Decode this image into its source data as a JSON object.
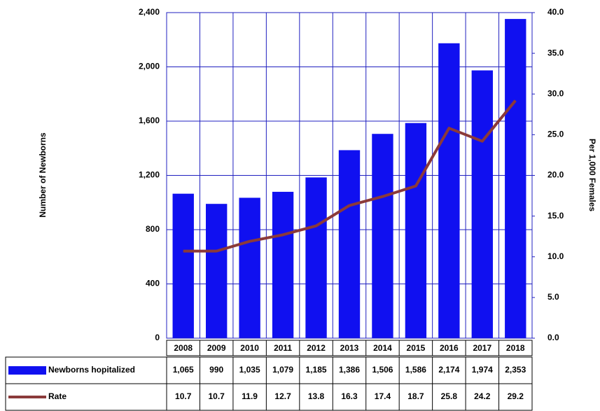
{
  "chart_data": {
    "type": "bar",
    "y_label": "Number of Newborns",
    "y2_label": "Per 1,000 Females",
    "categories": [
      "2008",
      "2009",
      "2010",
      "2011",
      "2012",
      "2013",
      "2014",
      "2015",
      "2016",
      "2017",
      "2018"
    ],
    "series": [
      {
        "name": "Newborns hopitalized",
        "type": "bar",
        "color": "#1010f0",
        "values": [
          1065,
          990,
          1035,
          1079,
          1185,
          1386,
          1506,
          1586,
          2174,
          1974,
          2353
        ],
        "value_labels": [
          "1,065",
          "990",
          "1,035",
          "1,079",
          "1,185",
          "1,386",
          "1,506",
          "1,586",
          "2,174",
          "1,974",
          "2,353"
        ]
      },
      {
        "name": "Rate",
        "type": "line",
        "axis": "y2",
        "color": "#8b3a3a",
        "values": [
          10.7,
          10.7,
          11.9,
          12.7,
          13.8,
          16.3,
          17.4,
          18.7,
          25.8,
          24.2,
          29.2
        ]
      }
    ],
    "ylim": [
      0,
      2400
    ],
    "yticks": [
      0,
      400,
      800,
      {
        "value": 1200,
        "label": "1,200"
      },
      {
        "value": 1600,
        "label": "1,600"
      },
      {
        "value": 2000,
        "label": "2,000"
      },
      {
        "value": 2400,
        "label": "2,400"
      }
    ],
    "y2lim": [
      0,
      40
    ],
    "y2ticks": [
      {
        "value": 0,
        "label": "0.0"
      },
      {
        "value": 5,
        "label": "5.0"
      },
      {
        "value": 10,
        "label": "10.0"
      },
      {
        "value": 15,
        "label": "15.0"
      },
      {
        "value": 20,
        "label": "20.0"
      },
      {
        "value": 25,
        "label": "25.0"
      },
      {
        "value": 30,
        "label": "30.0"
      },
      {
        "value": 35,
        "label": "35.0"
      },
      {
        "value": 40,
        "label": "40.0"
      }
    ],
    "grid": true,
    "grid_color": "#2020c0"
  }
}
